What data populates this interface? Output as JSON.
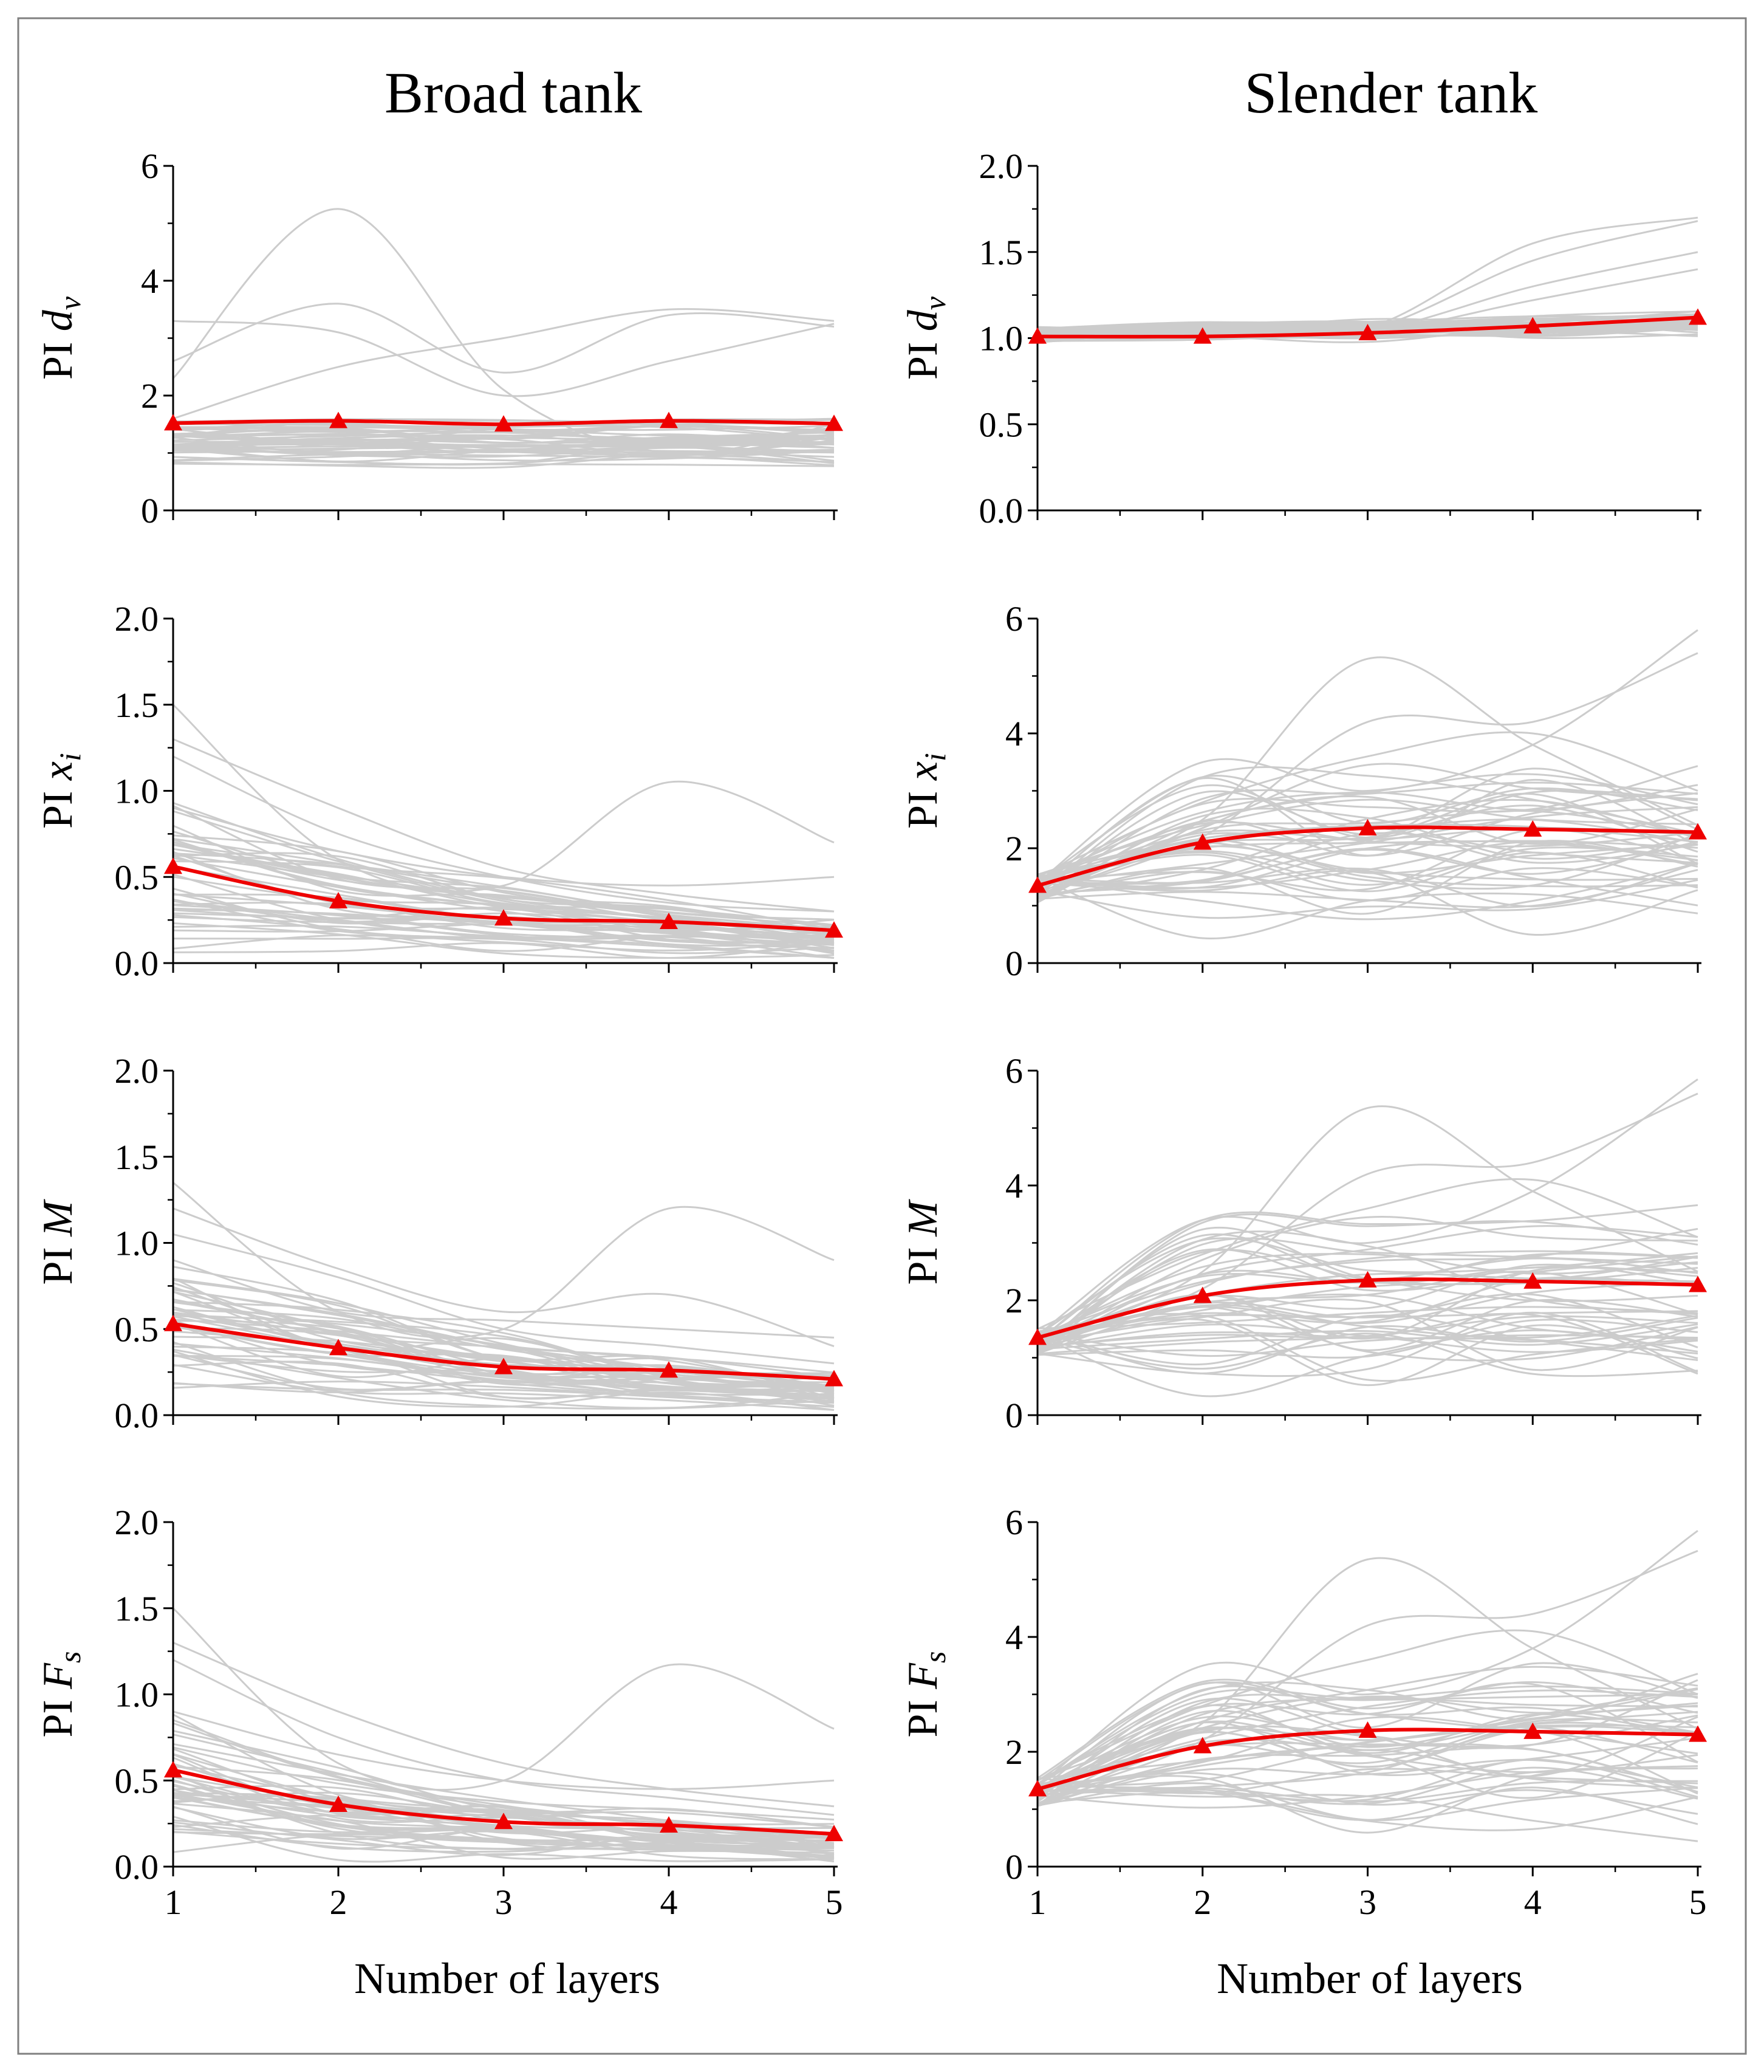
{
  "figure": {
    "columns": [
      "Broad tank",
      "Slender tank"
    ],
    "xlabel": "Number of layers",
    "colors": {
      "mean": "#ee0000",
      "samples": "#cccccc",
      "frame": "#808080"
    }
  },
  "chart_data": [
    {
      "type": "line",
      "panel": "broad-dv",
      "column_title": "Broad tank",
      "ylabel_prefix": "PI",
      "ylabel_symbol": "d",
      "ylabel_sub": "v",
      "x": [
        1,
        2,
        3,
        4,
        5
      ],
      "xlim": [
        1,
        5
      ],
      "xticks": [
        "1",
        "2",
        "3",
        "4",
        "5"
      ],
      "show_xtick_labels": false,
      "ylim": [
        0,
        6
      ],
      "yticks": [
        "0",
        "2",
        "4",
        "6"
      ],
      "series": [
        {
          "name": "mean",
          "marker": "triangle",
          "values": [
            1.52,
            1.56,
            1.5,
            1.56,
            1.51
          ]
        }
      ],
      "background": {
        "count": 45,
        "base": 1.2,
        "spread": 0.28,
        "amp": 0.35,
        "outliers": [
          [
            2.3,
            5.25,
            2.1,
            1.0,
            1.5
          ],
          [
            3.3,
            3.1,
            2.0,
            2.6,
            3.25
          ],
          [
            2.6,
            3.6,
            2.4,
            3.4,
            3.2
          ],
          [
            1.6,
            2.5,
            3.0,
            3.5,
            3.3
          ]
        ]
      }
    },
    {
      "type": "line",
      "panel": "slender-dv",
      "column_title": "Slender tank",
      "ylabel_prefix": "PI",
      "ylabel_symbol": "d",
      "ylabel_sub": "v",
      "x": [
        1,
        2,
        3,
        4,
        5
      ],
      "xlim": [
        1,
        5
      ],
      "xticks": [
        "1",
        "2",
        "3",
        "4",
        "5"
      ],
      "show_xtick_labels": false,
      "ylim": [
        0,
        2
      ],
      "yticks": [
        "0.0",
        "0.5",
        "1.0",
        "1.5",
        "2.0"
      ],
      "series": [
        {
          "name": "mean",
          "marker": "triangle",
          "values": [
            1.01,
            1.01,
            1.03,
            1.07,
            1.12
          ]
        }
      ],
      "background": {
        "count": 45,
        "base": 1.02,
        "spread": 0.03,
        "amp": 0.05,
        "grow": 0.12,
        "outliers": [
          [
            1.0,
            1.02,
            1.06,
            1.55,
            1.7
          ],
          [
            1.0,
            1.01,
            1.05,
            1.45,
            1.68
          ],
          [
            1.0,
            1.02,
            1.04,
            1.3,
            1.5
          ],
          [
            1.0,
            1.0,
            1.03,
            1.22,
            1.4
          ]
        ]
      }
    },
    {
      "type": "line",
      "panel": "broad-xi",
      "ylabel_prefix": "PI",
      "ylabel_symbol": "x",
      "ylabel_sub": "i",
      "x": [
        1,
        2,
        3,
        4,
        5
      ],
      "xlim": [
        1,
        5
      ],
      "xticks": [
        "1",
        "2",
        "3",
        "4",
        "5"
      ],
      "show_xtick_labels": false,
      "ylim": [
        0,
        2
      ],
      "yticks": [
        "0.0",
        "0.5",
        "1.0",
        "1.5",
        "2.0"
      ],
      "series": [
        {
          "name": "mean",
          "marker": "triangle",
          "values": [
            0.56,
            0.36,
            0.26,
            0.24,
            0.19
          ]
        }
      ],
      "background": {
        "count": 45,
        "decay": true,
        "start": 0.45,
        "spread": 0.3,
        "amp": 0.1,
        "outliers": [
          [
            1.5,
            0.6,
            0.45,
            1.05,
            0.7
          ],
          [
            1.3,
            0.9,
            0.55,
            0.4,
            0.3
          ],
          [
            1.2,
            0.75,
            0.5,
            0.35,
            0.3
          ],
          [
            0.9,
            0.65,
            0.5,
            0.45,
            0.5
          ]
        ]
      }
    },
    {
      "type": "line",
      "panel": "slender-xi",
      "ylabel_prefix": "PI",
      "ylabel_symbol": "x",
      "ylabel_sub": "i",
      "x": [
        1,
        2,
        3,
        4,
        5
      ],
      "xlim": [
        1,
        5
      ],
      "xticks": [
        "1",
        "2",
        "3",
        "4",
        "5"
      ],
      "show_xtick_labels": false,
      "ylim": [
        0,
        6
      ],
      "yticks": [
        "0",
        "2",
        "4",
        "6"
      ],
      "series": [
        {
          "name": "mean",
          "marker": "triangle",
          "values": [
            1.35,
            2.1,
            2.35,
            2.33,
            2.28
          ]
        }
      ],
      "background": {
        "count": 45,
        "rise": true,
        "start": 1.3,
        "spread": 0.55,
        "amp": 0.5,
        "outliers": [
          [
            1.3,
            2.5,
            5.3,
            3.8,
            2.4
          ],
          [
            1.4,
            3.5,
            3.0,
            3.8,
            5.8
          ],
          [
            1.2,
            2.2,
            4.2,
            4.2,
            5.4
          ],
          [
            1.5,
            2.8,
            3.6,
            4.0,
            3.0
          ]
        ]
      }
    },
    {
      "type": "line",
      "panel": "broad-m",
      "ylabel_prefix": "PI",
      "ylabel_symbol": "M",
      "ylabel_sub": "",
      "x": [
        1,
        2,
        3,
        4,
        5
      ],
      "xlim": [
        1,
        5
      ],
      "xticks": [
        "1",
        "2",
        "3",
        "4",
        "5"
      ],
      "show_xtick_labels": false,
      "ylim": [
        0,
        2
      ],
      "yticks": [
        "0.0",
        "0.5",
        "1.0",
        "1.5",
        "2.0"
      ],
      "series": [
        {
          "name": "mean",
          "marker": "triangle",
          "values": [
            0.53,
            0.39,
            0.28,
            0.26,
            0.21
          ]
        }
      ],
      "background": {
        "count": 45,
        "decay": true,
        "start": 0.45,
        "spread": 0.3,
        "amp": 0.1,
        "outliers": [
          [
            1.35,
            0.6,
            0.5,
            1.2,
            0.9
          ],
          [
            1.2,
            0.85,
            0.6,
            0.7,
            0.4
          ],
          [
            1.05,
            0.8,
            0.5,
            0.4,
            0.3
          ],
          [
            0.9,
            0.6,
            0.55,
            0.5,
            0.45
          ]
        ]
      }
    },
    {
      "type": "line",
      "panel": "slender-m",
      "ylabel_prefix": "PI",
      "ylabel_symbol": "M",
      "ylabel_sub": "",
      "x": [
        1,
        2,
        3,
        4,
        5
      ],
      "xlim": [
        1,
        5
      ],
      "xticks": [
        "1",
        "2",
        "3",
        "4",
        "5"
      ],
      "show_xtick_labels": false,
      "ylim": [
        0,
        6
      ],
      "yticks": [
        "0",
        "2",
        "4",
        "6"
      ],
      "series": [
        {
          "name": "mean",
          "marker": "triangle",
          "values": [
            1.35,
            2.08,
            2.35,
            2.33,
            2.27
          ]
        }
      ],
      "background": {
        "count": 45,
        "rise": true,
        "start": 1.3,
        "spread": 0.55,
        "amp": 0.5,
        "outliers": [
          [
            1.3,
            2.5,
            5.35,
            3.9,
            2.5
          ],
          [
            1.4,
            3.4,
            3.0,
            3.9,
            5.85
          ],
          [
            1.2,
            2.2,
            4.2,
            4.4,
            5.6
          ],
          [
            1.5,
            2.8,
            3.6,
            4.1,
            3.1
          ]
        ]
      }
    },
    {
      "type": "line",
      "panel": "broad-fs",
      "ylabel_prefix": "PI",
      "ylabel_symbol": "F",
      "ylabel_sub": "s",
      "x": [
        1,
        2,
        3,
        4,
        5
      ],
      "xlim": [
        1,
        5
      ],
      "xticks": [
        "1",
        "2",
        "3",
        "4",
        "5"
      ],
      "show_xtick_labels": true,
      "ylim": [
        0,
        2
      ],
      "yticks": [
        "0.0",
        "0.5",
        "1.0",
        "1.5",
        "2.0"
      ],
      "series": [
        {
          "name": "mean",
          "marker": "triangle",
          "values": [
            0.56,
            0.36,
            0.26,
            0.24,
            0.19
          ]
        }
      ],
      "background": {
        "count": 45,
        "decay": true,
        "start": 0.45,
        "spread": 0.3,
        "amp": 0.1,
        "outliers": [
          [
            1.5,
            0.6,
            0.5,
            1.17,
            0.8
          ],
          [
            1.3,
            0.9,
            0.6,
            0.45,
            0.35
          ],
          [
            1.2,
            0.75,
            0.5,
            0.4,
            0.3
          ],
          [
            0.9,
            0.65,
            0.5,
            0.45,
            0.5
          ]
        ]
      }
    },
    {
      "type": "line",
      "panel": "slender-fs",
      "ylabel_prefix": "PI",
      "ylabel_symbol": "F",
      "ylabel_sub": "s",
      "x": [
        1,
        2,
        3,
        4,
        5
      ],
      "xlim": [
        1,
        5
      ],
      "xticks": [
        "1",
        "2",
        "3",
        "4",
        "5"
      ],
      "show_xtick_labels": true,
      "ylim": [
        0,
        6
      ],
      "yticks": [
        "0",
        "2",
        "4",
        "6"
      ],
      "series": [
        {
          "name": "mean",
          "marker": "triangle",
          "values": [
            1.35,
            2.1,
            2.37,
            2.35,
            2.3
          ]
        }
      ],
      "background": {
        "count": 45,
        "rise": true,
        "start": 1.3,
        "spread": 0.55,
        "amp": 0.5,
        "outliers": [
          [
            1.3,
            2.5,
            5.35,
            3.8,
            2.4
          ],
          [
            1.4,
            3.5,
            3.0,
            3.8,
            5.85
          ],
          [
            1.2,
            2.2,
            4.2,
            4.4,
            5.5
          ],
          [
            1.5,
            2.8,
            3.6,
            4.1,
            3.0
          ]
        ]
      }
    }
  ]
}
